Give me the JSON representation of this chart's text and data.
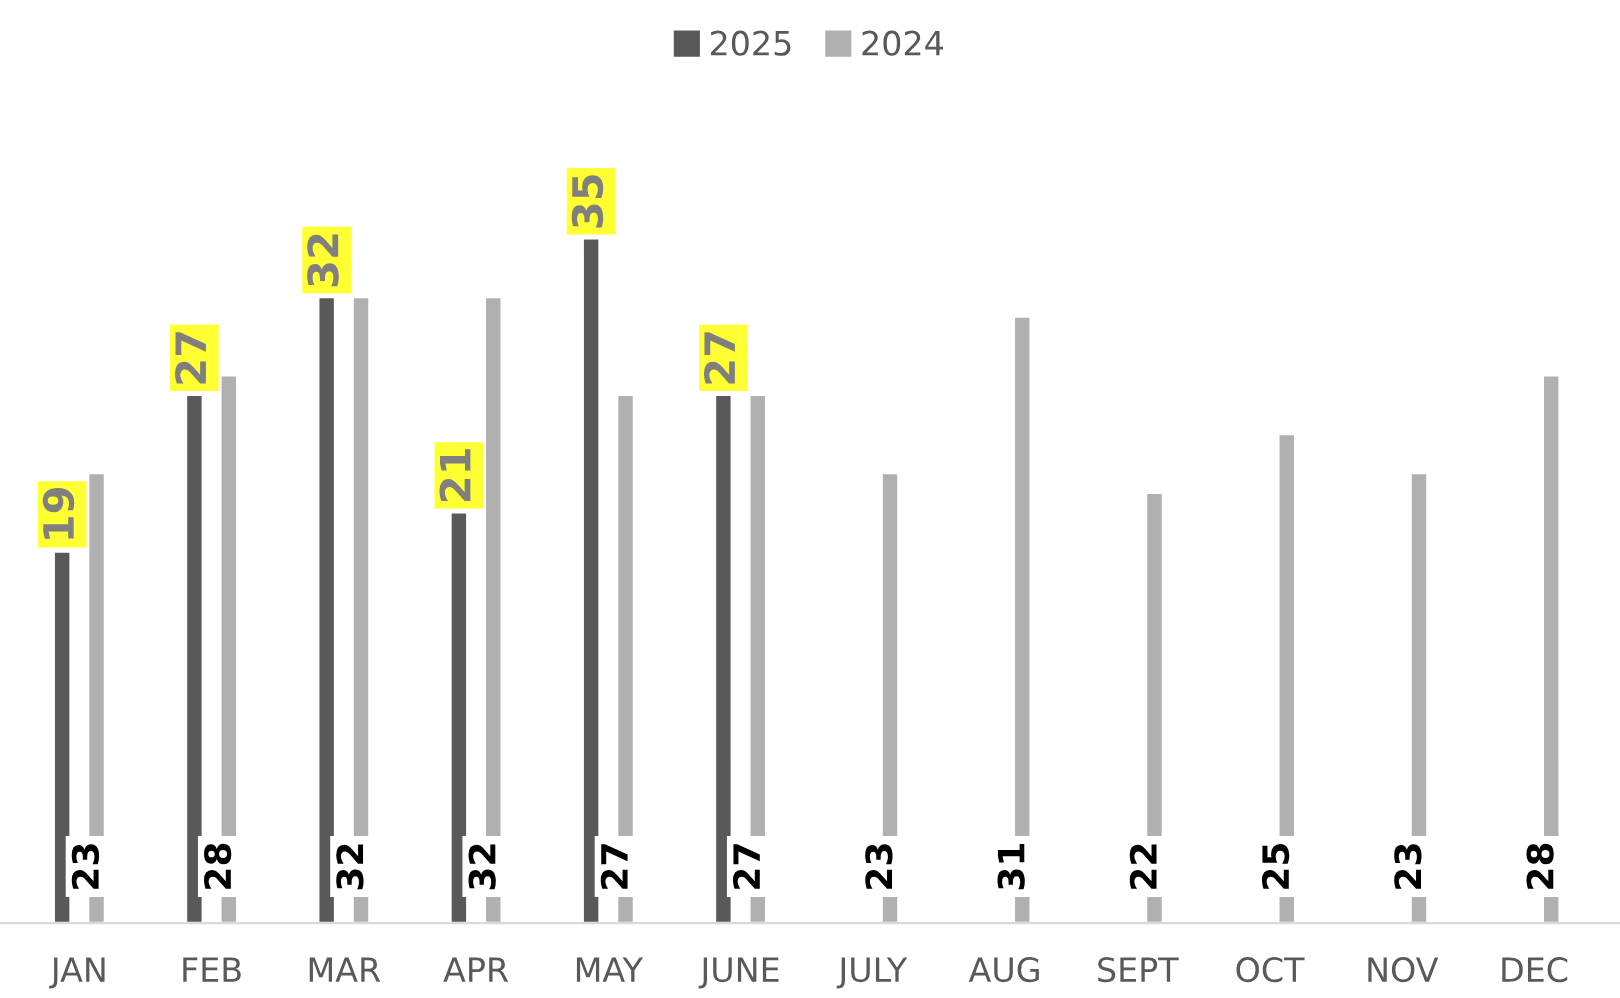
{
  "chart_data": {
    "type": "bar",
    "categories": [
      "JAN",
      "FEB",
      "MAR",
      "APR",
      "MAY",
      "JUNE",
      "JULY",
      "AUG",
      "SEPT",
      "OCT",
      "NOV",
      "DEC"
    ],
    "series": [
      {
        "name": "2025",
        "color": "#595959",
        "values": [
          19,
          27,
          32,
          21,
          35,
          27,
          null,
          null,
          null,
          null,
          null,
          null
        ]
      },
      {
        "name": "2024",
        "color": "#b0b0b0",
        "values": [
          23,
          28,
          32,
          32,
          27,
          27,
          23,
          31,
          22,
          25,
          23,
          28
        ]
      }
    ],
    "tick_labels": "x",
    "data_labels": true,
    "legend": "top",
    "grid": false
  }
}
